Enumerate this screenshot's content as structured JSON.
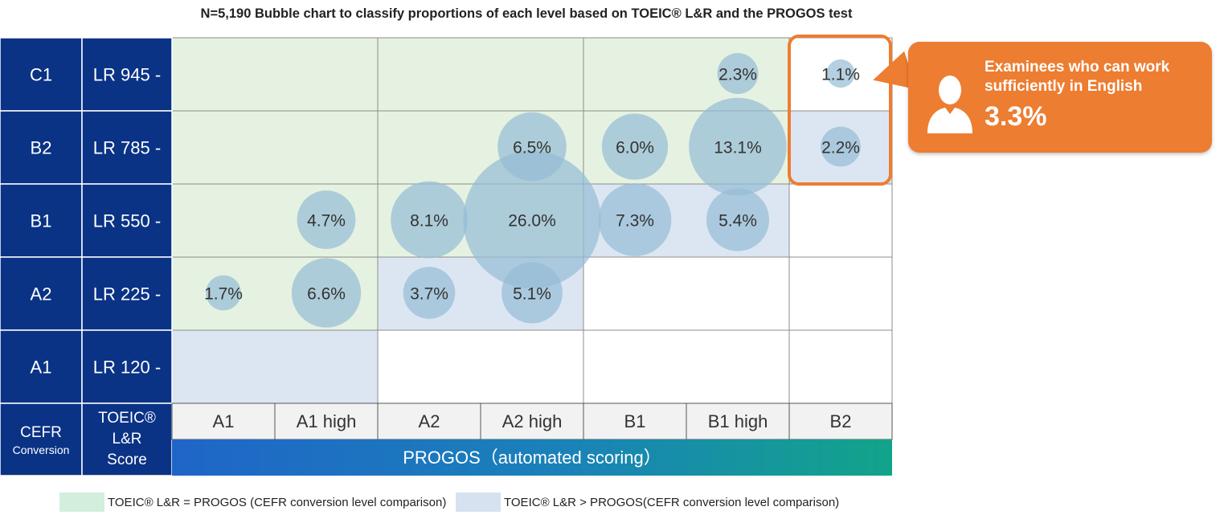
{
  "title": "N=5,190  Bubble chart to classify proportions of each level based on TOEIC® L&R and the PROGOS test",
  "colors": {
    "dark_blue": "#0a3386",
    "green_zone": "#e6f2e1",
    "blue_zone": "#dce6f2",
    "bubble": "#94bcd6",
    "highlight": "#ed7d31"
  },
  "chart_data": {
    "type": "bubble",
    "title": "N=5,190  Bubble chart to classify proportions of each level based on TOEIC® L&R and the PROGOS test",
    "x_categories": [
      "A1",
      "A1 high",
      "A2",
      "A2 high",
      "B1",
      "B1 high",
      "B2"
    ],
    "y_categories": [
      {
        "cefr": "C1",
        "score": "LR 945 -"
      },
      {
        "cefr": "B2",
        "score": "LR 785 -"
      },
      {
        "cefr": "B1",
        "score": "LR 550 -"
      },
      {
        "cefr": "A2",
        "score": "LR 225 -"
      },
      {
        "cefr": "A1",
        "score": "LR 120 -"
      }
    ],
    "xlabel": "PROGOS（automated scoring）",
    "ylabel_cefr": "CEFR",
    "ylabel_cefr_sub": "Conversion",
    "ylabel_score": "TOEIC® L&R Score",
    "points": [
      {
        "x": "B1 high",
        "y": "C1",
        "value": 2.3,
        "label": "2.3%"
      },
      {
        "x": "B2",
        "y": "C1",
        "value": 1.1,
        "label": "1.1%"
      },
      {
        "x": "A2 high",
        "y": "B2",
        "value": 6.5,
        "label": "6.5%"
      },
      {
        "x": "B1",
        "y": "B2",
        "value": 6.0,
        "label": "6.0%"
      },
      {
        "x": "B1 high",
        "y": "B2",
        "value": 13.1,
        "label": "13.1%"
      },
      {
        "x": "B2",
        "y": "B2",
        "value": 2.2,
        "label": "2.2%"
      },
      {
        "x": "A1 high",
        "y": "B1",
        "value": 4.7,
        "label": "4.7%"
      },
      {
        "x": "A2",
        "y": "B1",
        "value": 8.1,
        "label": "8.1%"
      },
      {
        "x": "A2 high",
        "y": "B1",
        "value": 26.0,
        "label": "26.0%"
      },
      {
        "x": "B1",
        "y": "B1",
        "value": 7.3,
        "label": "7.3%"
      },
      {
        "x": "B1 high",
        "y": "B1",
        "value": 5.4,
        "label": "5.4%"
      },
      {
        "x": "A1",
        "y": "A2",
        "value": 1.7,
        "label": "1.7%"
      },
      {
        "x": "A1 high",
        "y": "A2",
        "value": 6.6,
        "label": "6.6%"
      },
      {
        "x": "A2",
        "y": "A2",
        "value": 3.7,
        "label": "3.7%"
      },
      {
        "x": "A2 high",
        "y": "A2",
        "value": 5.1,
        "label": "5.1%"
      }
    ],
    "zones": {
      "equal": [
        {
          "row": "C1",
          "cols": [
            "A1",
            "A1 high",
            "A2",
            "A2 high",
            "B1",
            "B1 high"
          ]
        },
        {
          "row": "B2",
          "cols": [
            "A1",
            "A1 high",
            "A2",
            "A2 high",
            "B1",
            "B1 high"
          ]
        },
        {
          "row": "B1",
          "cols": [
            "A1",
            "A1 high",
            "A2",
            "A2 high"
          ]
        },
        {
          "row": "A2",
          "cols": [
            "A1",
            "A1 high"
          ]
        }
      ],
      "greater": [
        {
          "row": "B2",
          "cols": [
            "B2"
          ]
        },
        {
          "row": "B1",
          "cols": [
            "B1",
            "B1 high"
          ]
        },
        {
          "row": "A2",
          "cols": [
            "A2",
            "A2 high"
          ]
        },
        {
          "row": "A1",
          "cols": [
            "A1",
            "A1 high"
          ]
        }
      ]
    },
    "highlight": {
      "x": "B2",
      "rows": [
        "C1",
        "B2"
      ]
    }
  },
  "legend": {
    "equal_label": "TOEIC® L&R = PROGOS (CEFR conversion level comparison)",
    "greater_label": "TOEIC® L&R > PROGOS(CEFR conversion level comparison)"
  },
  "callout": {
    "text": "Examinees who can work sufficiently in English",
    "value": "3.3%",
    "icon": "person-icon"
  }
}
